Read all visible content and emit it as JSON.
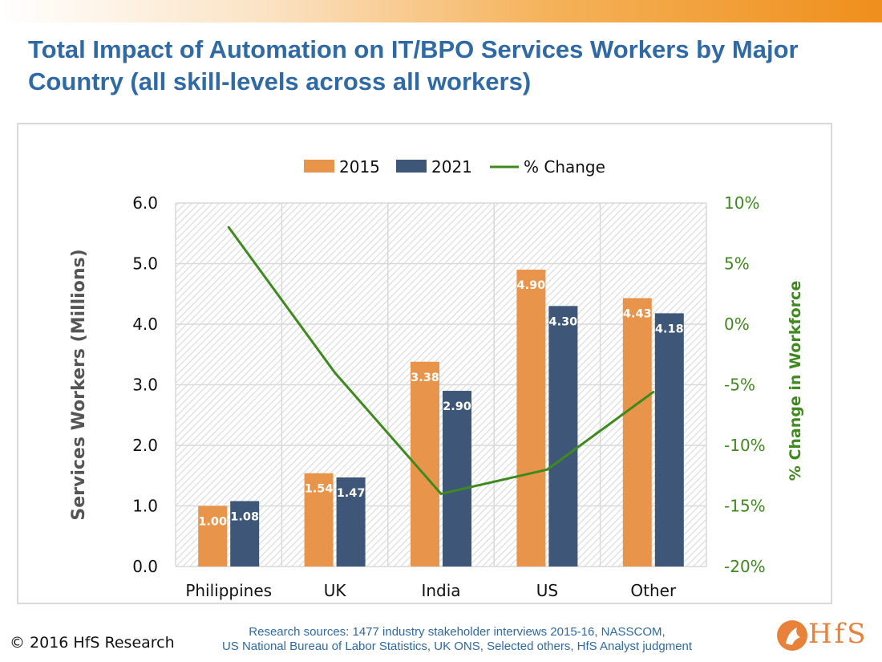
{
  "title": "Total Impact of Automation on IT/BPO Services Workers by Major Country (all skill-levels across all workers)",
  "footer": {
    "copyright": "© 2016 HfS Research",
    "sources_line1": "Research sources: 1477 industry stakeholder interviews 2015-16, NASSCOM,",
    "sources_line2": "US National Bureau of Labor Statistics, UK ONS,  Selected others, HfS Analyst judgment",
    "logo_text": "HfS"
  },
  "colors": {
    "title": "#2f6aa6",
    "series_2015": "#e8954b",
    "series_2021": "#3e5678",
    "change_line": "#3f8a1e",
    "logo": "#e8823a"
  },
  "chart_data": {
    "type": "bar",
    "categories": [
      "Philippines",
      "UK",
      "India",
      "US",
      "Other"
    ],
    "series": [
      {
        "name": "2015",
        "values": [
          1.0,
          1.54,
          3.38,
          4.9,
          4.43
        ],
        "labels": [
          "1.00",
          "1.54",
          "3.38",
          "4.90",
          "4.43"
        ],
        "color": "#e8954b",
        "axis": "left"
      },
      {
        "name": "2021",
        "values": [
          1.08,
          1.47,
          2.9,
          4.3,
          4.18
        ],
        "labels": [
          "1.08",
          "1.47",
          "2.90",
          "4.30",
          "4.18"
        ],
        "color": "#3e5678",
        "axis": "left"
      },
      {
        "name": "% Change",
        "type": "line",
        "values": [
          8,
          -4,
          -14,
          -12,
          -5.6
        ],
        "color": "#3f8a1e",
        "axis": "right"
      }
    ],
    "ylabel": "Services Workers (Millions)",
    "y2label": "% Change in Workforce",
    "ylim": [
      0,
      6
    ],
    "y2lim": [
      -20,
      10
    ],
    "yticks": [
      "0.0",
      "1.0",
      "2.0",
      "3.0",
      "4.0",
      "5.0",
      "6.0"
    ],
    "y2ticks": [
      "-20%",
      "-15%",
      "-10%",
      "-5%",
      "0%",
      "5%",
      "10%"
    ],
    "legend_position": "top-center",
    "grid": true
  }
}
